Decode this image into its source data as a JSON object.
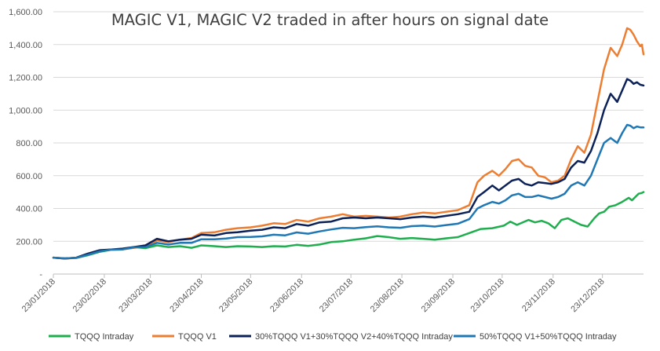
{
  "chart_data": {
    "type": "line",
    "title": "MAGIC V1, MAGIC V2 traded in after hours on signal date",
    "xlabel": "",
    "ylabel": "",
    "ylim": [
      0,
      1600
    ],
    "yticks": [
      0,
      200,
      400,
      600,
      800,
      1000,
      1200,
      1400,
      1600
    ],
    "ytick_labels": [
      "-",
      "200.00",
      "400.00",
      "600.00",
      "800.00",
      "1,000.00",
      "1,200.00",
      "1,400.00",
      "1,600.00"
    ],
    "xlim": [
      "2018-01-23",
      "2019-01-17"
    ],
    "xticks": [
      "2018-01-23",
      "2018-02-23",
      "2018-03-23",
      "2018-04-23",
      "2018-05-23",
      "2018-06-23",
      "2018-07-23",
      "2018-08-23",
      "2018-09-23",
      "2018-10-23",
      "2018-11-23",
      "2018-12-23"
    ],
    "xtick_labels": [
      "23/01/2018",
      "23/02/2018",
      "23/03/2018",
      "23/04/2018",
      "23/05/2018",
      "23/06/2018",
      "23/07/2018",
      "23/08/2018",
      "23/09/2018",
      "23/10/2018",
      "23/11/2018",
      "23/12/2018"
    ],
    "grid": "horizontal",
    "legend_position": "bottom",
    "series": [
      {
        "name": "TQQQ Intraday",
        "color": "#1fae4e",
        "points": [
          [
            "2018-01-23",
            100
          ],
          [
            "2018-01-30",
            96
          ],
          [
            "2018-02-06",
            98
          ],
          [
            "2018-02-13",
            115
          ],
          [
            "2018-02-20",
            135
          ],
          [
            "2018-02-27",
            148
          ],
          [
            "2018-03-06",
            150
          ],
          [
            "2018-03-13",
            165
          ],
          [
            "2018-03-20",
            158
          ],
          [
            "2018-03-27",
            175
          ],
          [
            "2018-04-03",
            165
          ],
          [
            "2018-04-10",
            170
          ],
          [
            "2018-04-17",
            160
          ],
          [
            "2018-04-23",
            175
          ],
          [
            "2018-05-01",
            170
          ],
          [
            "2018-05-08",
            165
          ],
          [
            "2018-05-15",
            170
          ],
          [
            "2018-05-23",
            168
          ],
          [
            "2018-05-30",
            165
          ],
          [
            "2018-06-06",
            170
          ],
          [
            "2018-06-13",
            168
          ],
          [
            "2018-06-20",
            178
          ],
          [
            "2018-06-27",
            172
          ],
          [
            "2018-07-04",
            180
          ],
          [
            "2018-07-11",
            195
          ],
          [
            "2018-07-18",
            200
          ],
          [
            "2018-07-25",
            210
          ],
          [
            "2018-08-01",
            218
          ],
          [
            "2018-08-08",
            232
          ],
          [
            "2018-08-15",
            225
          ],
          [
            "2018-08-22",
            215
          ],
          [
            "2018-08-29",
            220
          ],
          [
            "2018-09-05",
            215
          ],
          [
            "2018-09-12",
            210
          ],
          [
            "2018-09-19",
            218
          ],
          [
            "2018-09-26",
            225
          ],
          [
            "2018-10-03",
            250
          ],
          [
            "2018-10-10",
            275
          ],
          [
            "2018-10-17",
            280
          ],
          [
            "2018-10-24",
            295
          ],
          [
            "2018-10-28",
            320
          ],
          [
            "2018-11-01",
            300
          ],
          [
            "2018-11-08",
            330
          ],
          [
            "2018-11-12",
            315
          ],
          [
            "2018-11-16",
            325
          ],
          [
            "2018-11-20",
            310
          ],
          [
            "2018-11-24",
            280
          ],
          [
            "2018-11-28",
            330
          ],
          [
            "2018-12-02",
            340
          ],
          [
            "2018-12-06",
            320
          ],
          [
            "2018-12-10",
            300
          ],
          [
            "2018-12-14",
            290
          ],
          [
            "2018-12-18",
            340
          ],
          [
            "2018-12-21",
            370
          ],
          [
            "2018-12-24",
            380
          ],
          [
            "2018-12-27",
            410
          ],
          [
            "2018-12-31",
            420
          ],
          [
            "2019-01-04",
            440
          ],
          [
            "2019-01-08",
            465
          ],
          [
            "2019-01-10",
            450
          ],
          [
            "2019-01-12",
            470
          ],
          [
            "2019-01-14",
            490
          ],
          [
            "2019-01-16",
            495
          ],
          [
            "2019-01-17",
            500
          ]
        ]
      },
      {
        "name": "TQQQ V1",
        "color": "#ed7d31",
        "points": [
          [
            "2018-01-23",
            100
          ],
          [
            "2018-01-30",
            95
          ],
          [
            "2018-02-06",
            98
          ],
          [
            "2018-02-13",
            120
          ],
          [
            "2018-02-20",
            140
          ],
          [
            "2018-02-27",
            150
          ],
          [
            "2018-03-06",
            150
          ],
          [
            "2018-03-13",
            160
          ],
          [
            "2018-03-20",
            170
          ],
          [
            "2018-03-27",
            205
          ],
          [
            "2018-04-03",
            195
          ],
          [
            "2018-04-10",
            210
          ],
          [
            "2018-04-17",
            220
          ],
          [
            "2018-04-23",
            250
          ],
          [
            "2018-05-01",
            255
          ],
          [
            "2018-05-08",
            270
          ],
          [
            "2018-05-15",
            280
          ],
          [
            "2018-05-23",
            285
          ],
          [
            "2018-05-30",
            295
          ],
          [
            "2018-06-06",
            310
          ],
          [
            "2018-06-13",
            305
          ],
          [
            "2018-06-20",
            330
          ],
          [
            "2018-06-27",
            320
          ],
          [
            "2018-07-04",
            340
          ],
          [
            "2018-07-11",
            350
          ],
          [
            "2018-07-18",
            365
          ],
          [
            "2018-07-25",
            350
          ],
          [
            "2018-08-01",
            355
          ],
          [
            "2018-08-08",
            350
          ],
          [
            "2018-08-15",
            345
          ],
          [
            "2018-08-22",
            350
          ],
          [
            "2018-08-29",
            365
          ],
          [
            "2018-09-05",
            375
          ],
          [
            "2018-09-12",
            370
          ],
          [
            "2018-09-19",
            380
          ],
          [
            "2018-09-26",
            390
          ],
          [
            "2018-10-03",
            420
          ],
          [
            "2018-10-08",
            560
          ],
          [
            "2018-10-12",
            600
          ],
          [
            "2018-10-17",
            630
          ],
          [
            "2018-10-21",
            600
          ],
          [
            "2018-10-25",
            640
          ],
          [
            "2018-10-29",
            690
          ],
          [
            "2018-11-02",
            700
          ],
          [
            "2018-11-06",
            660
          ],
          [
            "2018-11-10",
            650
          ],
          [
            "2018-11-14",
            600
          ],
          [
            "2018-11-18",
            590
          ],
          [
            "2018-11-22",
            560
          ],
          [
            "2018-11-26",
            570
          ],
          [
            "2018-11-30",
            600
          ],
          [
            "2018-12-04",
            700
          ],
          [
            "2018-12-08",
            780
          ],
          [
            "2018-12-12",
            740
          ],
          [
            "2018-12-16",
            850
          ],
          [
            "2018-12-20",
            1050
          ],
          [
            "2018-12-24",
            1250
          ],
          [
            "2018-12-28",
            1380
          ],
          [
            "2019-01-01",
            1330
          ],
          [
            "2019-01-04",
            1400
          ],
          [
            "2019-01-07",
            1500
          ],
          [
            "2019-01-09",
            1490
          ],
          [
            "2019-01-11",
            1460
          ],
          [
            "2019-01-13",
            1420
          ],
          [
            "2019-01-15",
            1390
          ],
          [
            "2019-01-16",
            1400
          ],
          [
            "2019-01-17",
            1340
          ]
        ]
      },
      {
        "name": "30%TQQQ V1+30%TQQQ V2+40%TQQQ Intraday",
        "color": "#0b2157",
        "points": [
          [
            "2018-01-23",
            100
          ],
          [
            "2018-01-30",
            95
          ],
          [
            "2018-02-06",
            100
          ],
          [
            "2018-02-13",
            125
          ],
          [
            "2018-02-20",
            145
          ],
          [
            "2018-02-27",
            150
          ],
          [
            "2018-03-06",
            155
          ],
          [
            "2018-03-13",
            165
          ],
          [
            "2018-03-20",
            175
          ],
          [
            "2018-03-27",
            215
          ],
          [
            "2018-04-03",
            200
          ],
          [
            "2018-04-10",
            210
          ],
          [
            "2018-04-17",
            215
          ],
          [
            "2018-04-23",
            240
          ],
          [
            "2018-05-01",
            235
          ],
          [
            "2018-05-08",
            250
          ],
          [
            "2018-05-15",
            255
          ],
          [
            "2018-05-23",
            265
          ],
          [
            "2018-05-30",
            270
          ],
          [
            "2018-06-06",
            285
          ],
          [
            "2018-06-13",
            280
          ],
          [
            "2018-06-20",
            305
          ],
          [
            "2018-06-27",
            295
          ],
          [
            "2018-07-04",
            315
          ],
          [
            "2018-07-11",
            320
          ],
          [
            "2018-07-18",
            340
          ],
          [
            "2018-07-25",
            345
          ],
          [
            "2018-08-01",
            340
          ],
          [
            "2018-08-08",
            345
          ],
          [
            "2018-08-15",
            340
          ],
          [
            "2018-08-22",
            335
          ],
          [
            "2018-08-29",
            345
          ],
          [
            "2018-09-05",
            350
          ],
          [
            "2018-09-12",
            345
          ],
          [
            "2018-09-19",
            355
          ],
          [
            "2018-09-26",
            365
          ],
          [
            "2018-10-03",
            380
          ],
          [
            "2018-10-08",
            470
          ],
          [
            "2018-10-12",
            500
          ],
          [
            "2018-10-17",
            540
          ],
          [
            "2018-10-21",
            510
          ],
          [
            "2018-10-25",
            540
          ],
          [
            "2018-10-29",
            570
          ],
          [
            "2018-11-02",
            580
          ],
          [
            "2018-11-06",
            550
          ],
          [
            "2018-11-10",
            540
          ],
          [
            "2018-11-14",
            560
          ],
          [
            "2018-11-18",
            555
          ],
          [
            "2018-11-22",
            550
          ],
          [
            "2018-11-26",
            560
          ],
          [
            "2018-11-30",
            580
          ],
          [
            "2018-12-04",
            650
          ],
          [
            "2018-12-08",
            690
          ],
          [
            "2018-12-12",
            680
          ],
          [
            "2018-12-16",
            750
          ],
          [
            "2018-12-20",
            860
          ],
          [
            "2018-12-24",
            1000
          ],
          [
            "2018-12-28",
            1100
          ],
          [
            "2019-01-01",
            1050
          ],
          [
            "2019-01-04",
            1120
          ],
          [
            "2019-01-07",
            1190
          ],
          [
            "2019-01-09",
            1180
          ],
          [
            "2019-01-11",
            1160
          ],
          [
            "2019-01-13",
            1170
          ],
          [
            "2019-01-15",
            1155
          ],
          [
            "2019-01-17",
            1150
          ]
        ]
      },
      {
        "name": "50%TQQQ V1+50%TQQQ Intraday",
        "color": "#1f77b4",
        "points": [
          [
            "2018-01-23",
            100
          ],
          [
            "2018-01-30",
            96
          ],
          [
            "2018-02-06",
            99
          ],
          [
            "2018-02-13",
            118
          ],
          [
            "2018-02-20",
            138
          ],
          [
            "2018-02-27",
            149
          ],
          [
            "2018-03-06",
            150
          ],
          [
            "2018-03-13",
            163
          ],
          [
            "2018-03-20",
            164
          ],
          [
            "2018-03-27",
            190
          ],
          [
            "2018-04-03",
            180
          ],
          [
            "2018-04-10",
            190
          ],
          [
            "2018-04-17",
            190
          ],
          [
            "2018-04-23",
            212
          ],
          [
            "2018-05-01",
            212
          ],
          [
            "2018-05-08",
            217
          ],
          [
            "2018-05-15",
            225
          ],
          [
            "2018-05-23",
            226
          ],
          [
            "2018-05-30",
            230
          ],
          [
            "2018-06-06",
            240
          ],
          [
            "2018-06-13",
            236
          ],
          [
            "2018-06-20",
            254
          ],
          [
            "2018-06-27",
            246
          ],
          [
            "2018-07-04",
            260
          ],
          [
            "2018-07-11",
            272
          ],
          [
            "2018-07-18",
            282
          ],
          [
            "2018-07-25",
            280
          ],
          [
            "2018-08-01",
            286
          ],
          [
            "2018-08-08",
            291
          ],
          [
            "2018-08-15",
            285
          ],
          [
            "2018-08-22",
            282
          ],
          [
            "2018-08-29",
            292
          ],
          [
            "2018-09-05",
            295
          ],
          [
            "2018-09-12",
            290
          ],
          [
            "2018-09-19",
            299
          ],
          [
            "2018-09-26",
            307
          ],
          [
            "2018-10-03",
            335
          ],
          [
            "2018-10-08",
            400
          ],
          [
            "2018-10-12",
            420
          ],
          [
            "2018-10-17",
            440
          ],
          [
            "2018-10-21",
            430
          ],
          [
            "2018-10-25",
            450
          ],
          [
            "2018-10-29",
            480
          ],
          [
            "2018-11-02",
            490
          ],
          [
            "2018-11-06",
            470
          ],
          [
            "2018-11-10",
            470
          ],
          [
            "2018-11-14",
            480
          ],
          [
            "2018-11-18",
            470
          ],
          [
            "2018-11-22",
            460
          ],
          [
            "2018-11-26",
            470
          ],
          [
            "2018-11-30",
            490
          ],
          [
            "2018-12-04",
            540
          ],
          [
            "2018-12-08",
            560
          ],
          [
            "2018-12-12",
            540
          ],
          [
            "2018-12-16",
            600
          ],
          [
            "2018-12-20",
            700
          ],
          [
            "2018-12-24",
            800
          ],
          [
            "2018-12-28",
            830
          ],
          [
            "2019-01-01",
            800
          ],
          [
            "2019-01-04",
            860
          ],
          [
            "2019-01-07",
            910
          ],
          [
            "2019-01-09",
            905
          ],
          [
            "2019-01-11",
            890
          ],
          [
            "2019-01-13",
            900
          ],
          [
            "2019-01-15",
            895
          ],
          [
            "2019-01-17",
            895
          ]
        ]
      }
    ]
  }
}
